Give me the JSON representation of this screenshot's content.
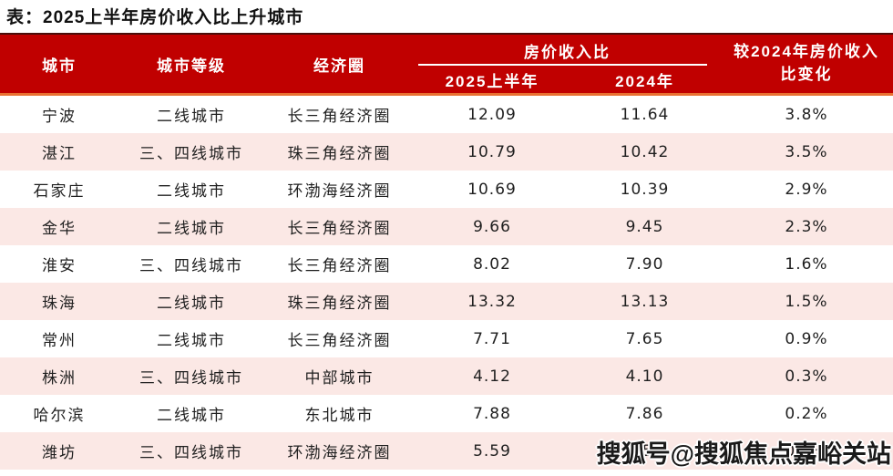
{
  "title": "表：2025上半年房价收入比上升城市",
  "colors": {
    "header_red": "#c00000",
    "row_pink": "#fbe8e5",
    "orange_divider": "#e97132",
    "dark_top_line": "#4a0e0a",
    "header_text": "#ffffff",
    "body_text": "#1f1f1f"
  },
  "header": {
    "city": "城市",
    "tier": "城市等级",
    "circle": "经济圈",
    "ratio_group": "房价收入比",
    "ratio_2025h1": "2025上半年",
    "ratio_2024": "2024年",
    "change_line1": "较2024年房价收入",
    "change_line2": "比变化"
  },
  "table": {
    "rows": [
      {
        "city": "宁波",
        "tier": "二线城市",
        "circle": "长三角经济圈",
        "h1_2025": "12.09",
        "y2024": "11.64",
        "change": "3.8%"
      },
      {
        "city": "湛江",
        "tier": "三、四线城市",
        "circle": "珠三角经济圈",
        "h1_2025": "10.79",
        "y2024": "10.42",
        "change": "3.5%"
      },
      {
        "city": "石家庄",
        "tier": "二线城市",
        "circle": "环渤海经济圈",
        "h1_2025": "10.69",
        "y2024": "10.39",
        "change": "2.9%"
      },
      {
        "city": "金华",
        "tier": "二线城市",
        "circle": "长三角经济圈",
        "h1_2025": "9.66",
        "y2024": "9.45",
        "change": "2.3%"
      },
      {
        "city": "淮安",
        "tier": "三、四线城市",
        "circle": "长三角经济圈",
        "h1_2025": "8.02",
        "y2024": "7.90",
        "change": "1.6%"
      },
      {
        "city": "珠海",
        "tier": "二线城市",
        "circle": "珠三角经济圈",
        "h1_2025": "13.32",
        "y2024": "13.13",
        "change": "1.5%"
      },
      {
        "city": "常州",
        "tier": "二线城市",
        "circle": "长三角经济圈",
        "h1_2025": "7.71",
        "y2024": "7.65",
        "change": "0.9%"
      },
      {
        "city": "株洲",
        "tier": "三、四线城市",
        "circle": "中部城市",
        "h1_2025": "4.12",
        "y2024": "4.10",
        "change": "0.3%"
      },
      {
        "city": "哈尔滨",
        "tier": "二线城市",
        "circle": "东北城市",
        "h1_2025": "7.88",
        "y2024": "7.86",
        "change": "0.2%"
      },
      {
        "city": "潍坊",
        "tier": "三、四线城市",
        "circle": "环渤海经济圈",
        "h1_2025": "5.59",
        "y2024": "5.58",
        "change": "0.2%"
      }
    ]
  },
  "watermark": "搜狐号@搜狐焦点嘉峪关站"
}
